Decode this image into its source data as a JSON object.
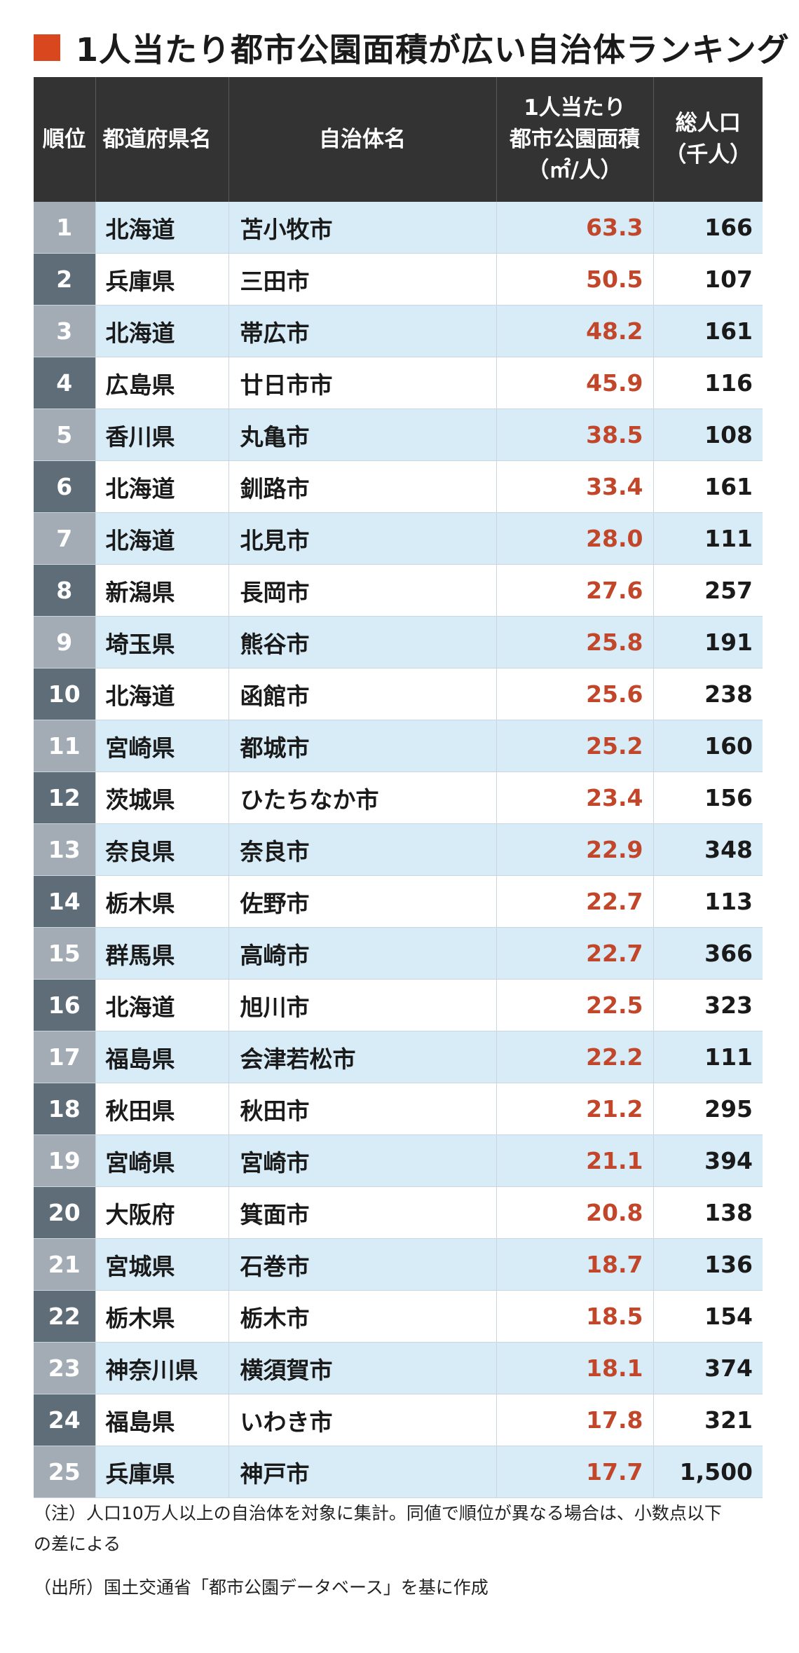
{
  "title": "1人当たり都市公園面積が広い自治体ランキング",
  "header": {
    "rank": "順位",
    "prefecture": "都道府県名",
    "municipality": "自治体名",
    "area_line1": "1人当たり",
    "area_line2": "都市公園面積",
    "area_line3": "（㎡/人）",
    "pop_line1": "総人口",
    "pop_line2": "（千人）"
  },
  "rows": [
    {
      "rank": "1",
      "prefecture": "北海道",
      "municipality": "苫小牧市",
      "area": "63.3",
      "population": "166"
    },
    {
      "rank": "2",
      "prefecture": "兵庫県",
      "municipality": "三田市",
      "area": "50.5",
      "population": "107"
    },
    {
      "rank": "3",
      "prefecture": "北海道",
      "municipality": "帯広市",
      "area": "48.2",
      "population": "161"
    },
    {
      "rank": "4",
      "prefecture": "広島県",
      "municipality": "廿日市市",
      "area": "45.9",
      "population": "116"
    },
    {
      "rank": "5",
      "prefecture": "香川県",
      "municipality": "丸亀市",
      "area": "38.5",
      "population": "108"
    },
    {
      "rank": "6",
      "prefecture": "北海道",
      "municipality": "釧路市",
      "area": "33.4",
      "population": "161"
    },
    {
      "rank": "7",
      "prefecture": "北海道",
      "municipality": "北見市",
      "area": "28.0",
      "population": "111"
    },
    {
      "rank": "8",
      "prefecture": "新潟県",
      "municipality": "長岡市",
      "area": "27.6",
      "population": "257"
    },
    {
      "rank": "9",
      "prefecture": "埼玉県",
      "municipality": "熊谷市",
      "area": "25.8",
      "population": "191"
    },
    {
      "rank": "10",
      "prefecture": "北海道",
      "municipality": "函館市",
      "area": "25.6",
      "population": "238"
    },
    {
      "rank": "11",
      "prefecture": "宮崎県",
      "municipality": "都城市",
      "area": "25.2",
      "population": "160"
    },
    {
      "rank": "12",
      "prefecture": "茨城県",
      "municipality": "ひたちなか市",
      "area": "23.4",
      "population": "156"
    },
    {
      "rank": "13",
      "prefecture": "奈良県",
      "municipality": "奈良市",
      "area": "22.9",
      "population": "348"
    },
    {
      "rank": "14",
      "prefecture": "栃木県",
      "municipality": "佐野市",
      "area": "22.7",
      "population": "113"
    },
    {
      "rank": "15",
      "prefecture": "群馬県",
      "municipality": "高崎市",
      "area": "22.7",
      "population": "366"
    },
    {
      "rank": "16",
      "prefecture": "北海道",
      "municipality": "旭川市",
      "area": "22.5",
      "population": "323"
    },
    {
      "rank": "17",
      "prefecture": "福島県",
      "municipality": "会津若松市",
      "area": "22.2",
      "population": "111"
    },
    {
      "rank": "18",
      "prefecture": "秋田県",
      "municipality": "秋田市",
      "area": "21.2",
      "population": "295"
    },
    {
      "rank": "19",
      "prefecture": "宮崎県",
      "municipality": "宮崎市",
      "area": "21.1",
      "population": "394"
    },
    {
      "rank": "20",
      "prefecture": "大阪府",
      "municipality": "箕面市",
      "area": "20.8",
      "population": "138"
    },
    {
      "rank": "21",
      "prefecture": "宮城県",
      "municipality": "石巻市",
      "area": "18.7",
      "population": "136"
    },
    {
      "rank": "22",
      "prefecture": "栃木県",
      "municipality": "栃木市",
      "area": "18.5",
      "population": "154"
    },
    {
      "rank": "23",
      "prefecture": "神奈川県",
      "municipality": "横須賀市",
      "area": "18.1",
      "population": "374"
    },
    {
      "rank": "24",
      "prefecture": "福島県",
      "municipality": "いわき市",
      "area": "17.8",
      "population": "321"
    },
    {
      "rank": "25",
      "prefecture": "兵庫県",
      "municipality": "神戸市",
      "area": "17.7",
      "population": "1,500"
    }
  ],
  "notes": {
    "note_line1": "（注）人口10万人以上の自治体を対象に集計。同値で順位が異なる場合は、小数点以下",
    "note_line2": "の差による",
    "source": "（出所）国土交通省「都市公園データベース」を基に作成"
  },
  "colors": {
    "accent": "#d9471f",
    "header_bg": "#333333",
    "row_odd_bg": "#d7ecf7",
    "rank_odd_bg": "#a3acb4",
    "rank_even_bg": "#5f6d78",
    "area_text": "#c1462a"
  }
}
